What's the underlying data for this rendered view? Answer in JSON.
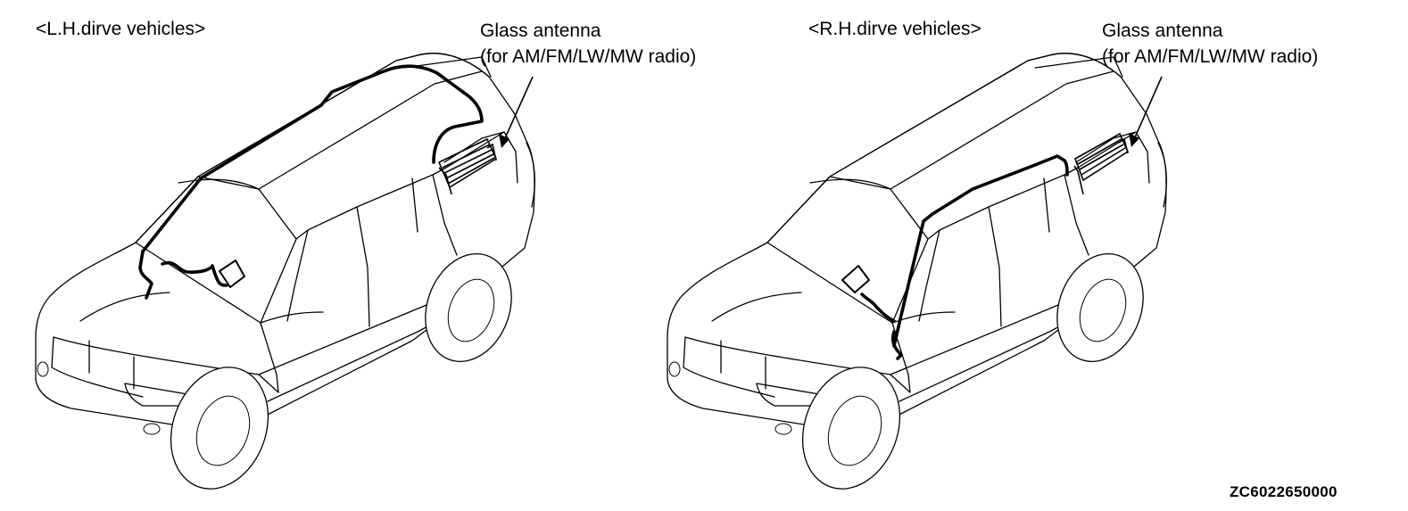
{
  "diagram": {
    "left_panel": {
      "title": "<L.H.dirve vehicles>",
      "callout_line1": "Glass antenna",
      "callout_line2": "(for AM/FM/LW/MW radio)"
    },
    "right_panel": {
      "title": "<R.H.dirve vehicles>",
      "callout_line1": "Glass antenna",
      "callout_line2": "(for AM/FM/LW/MW radio)"
    },
    "figure_code": "ZC6022650000"
  }
}
